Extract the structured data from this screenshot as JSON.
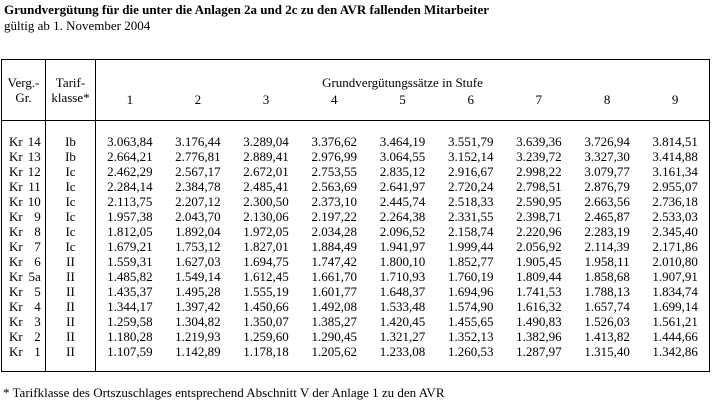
{
  "page": {
    "title": "Grundvergütung für die unter die Anlagen 2a und 2c zu den AVR fallenden Mitarbeiter",
    "subtitle": "gültig ab 1. November 2004",
    "footnote": "* Tarifklasse des Ortszuschlages entsprechend Abschnitt V der Anlage 1 zu den AVR"
  },
  "table": {
    "header": {
      "col1_line1": "Verg.-",
      "col1_line2": "Gr.",
      "col2_line1": "Tarif-",
      "col2_line2": "klasse*",
      "group_label": "Grundvergütungssätze in Stufe",
      "stufen": [
        "1",
        "2",
        "3",
        "4",
        "5",
        "6",
        "7",
        "8",
        "9"
      ]
    },
    "rows": [
      {
        "gruppe": "Kr",
        "nr": "14",
        "tarifklasse": "Ib",
        "werte": [
          "3.063,84",
          "3.176,44",
          "3.289,04",
          "3.376,62",
          "3.464,19",
          "3.551,79",
          "3.639,36",
          "3.726,94",
          "3.814,51"
        ]
      },
      {
        "gruppe": "Kr",
        "nr": "13",
        "tarifklasse": "Ib",
        "werte": [
          "2.664,21",
          "2.776,81",
          "2.889,41",
          "2.976,99",
          "3.064,55",
          "3.152,14",
          "3.239,72",
          "3.327,30",
          "3.414,88"
        ]
      },
      {
        "gruppe": "Kr",
        "nr": "12",
        "tarifklasse": "Ic",
        "werte": [
          "2.462,29",
          "2.567,17",
          "2.672,01",
          "2.753,55",
          "2.835,12",
          "2.916,67",
          "2.998,22",
          "3.079,77",
          "3.161,34"
        ]
      },
      {
        "gruppe": "Kr",
        "nr": "11",
        "tarifklasse": "Ic",
        "werte": [
          "2.284,14",
          "2.384,78",
          "2.485,41",
          "2.563,69",
          "2.641,97",
          "2.720,24",
          "2.798,51",
          "2.876,79",
          "2.955,07"
        ]
      },
      {
        "gruppe": "Kr",
        "nr": "10",
        "tarifklasse": "Ic",
        "werte": [
          "2.113,75",
          "2.207,12",
          "2.300,50",
          "2.373,10",
          "2.445,74",
          "2.518,33",
          "2.590,95",
          "2.663,56",
          "2.736,18"
        ]
      },
      {
        "gruppe": "Kr",
        "nr": "9",
        "tarifklasse": "Ic",
        "werte": [
          "1.957,38",
          "2.043,70",
          "2.130,06",
          "2.197,22",
          "2.264,38",
          "2.331,55",
          "2.398,71",
          "2.465,87",
          "2.533,03"
        ]
      },
      {
        "gruppe": "Kr",
        "nr": "8",
        "tarifklasse": "Ic",
        "werte": [
          "1.812,05",
          "1.892,04",
          "1.972,05",
          "2.034,28",
          "2.096,52",
          "2.158,74",
          "2.220,96",
          "2.283,19",
          "2.345,40"
        ]
      },
      {
        "gruppe": "Kr",
        "nr": "7",
        "tarifklasse": "Ic",
        "werte": [
          "1.679,21",
          "1.753,12",
          "1.827,01",
          "1.884,49",
          "1.941,97",
          "1.999,44",
          "2.056,92",
          "2.114,39",
          "2.171,86"
        ]
      },
      {
        "gruppe": "Kr",
        "nr": "6",
        "tarifklasse": "II",
        "werte": [
          "1.559,31",
          "1.627,03",
          "1.694,75",
          "1.747,42",
          "1.800,10",
          "1.852,77",
          "1.905,45",
          "1.958,11",
          "2.010,80"
        ]
      },
      {
        "gruppe": "Kr",
        "nr": "5a",
        "tarifklasse": "II",
        "werte": [
          "1.485,82",
          "1.549,14",
          "1.612,45",
          "1.661,70",
          "1.710,93",
          "1.760,19",
          "1.809,44",
          "1.858,68",
          "1.907,91"
        ]
      },
      {
        "gruppe": "Kr",
        "nr": "5",
        "tarifklasse": "II",
        "werte": [
          "1.435,37",
          "1.495,28",
          "1.555,19",
          "1.601,77",
          "1.648,37",
          "1.694,96",
          "1.741,53",
          "1.788,13",
          "1.834,74"
        ]
      },
      {
        "gruppe": "Kr",
        "nr": "4",
        "tarifklasse": "II",
        "werte": [
          "1.344,17",
          "1.397,42",
          "1.450,66",
          "1.492,08",
          "1.533,48",
          "1.574,90",
          "1.616,32",
          "1.657,74",
          "1.699,14"
        ]
      },
      {
        "gruppe": "Kr",
        "nr": "3",
        "tarifklasse": "II",
        "werte": [
          "1.259,58",
          "1.304,82",
          "1.350,07",
          "1.385,27",
          "1.420,45",
          "1.455,65",
          "1.490,83",
          "1.526,03",
          "1.561,21"
        ]
      },
      {
        "gruppe": "Kr",
        "nr": "2",
        "tarifklasse": "II",
        "werte": [
          "1.180,28",
          "1.219,93",
          "1.259,60",
          "1.290,45",
          "1.321,27",
          "1.352,13",
          "1.382,96",
          "1.413,82",
          "1.444,66"
        ]
      },
      {
        "gruppe": "Kr",
        "nr": "1",
        "tarifklasse": "II",
        "werte": [
          "1.107,59",
          "1.142,89",
          "1.178,18",
          "1.205,62",
          "1.233,08",
          "1.260,53",
          "1.287,97",
          "1.315,40",
          "1.342,86"
        ]
      }
    ]
  }
}
